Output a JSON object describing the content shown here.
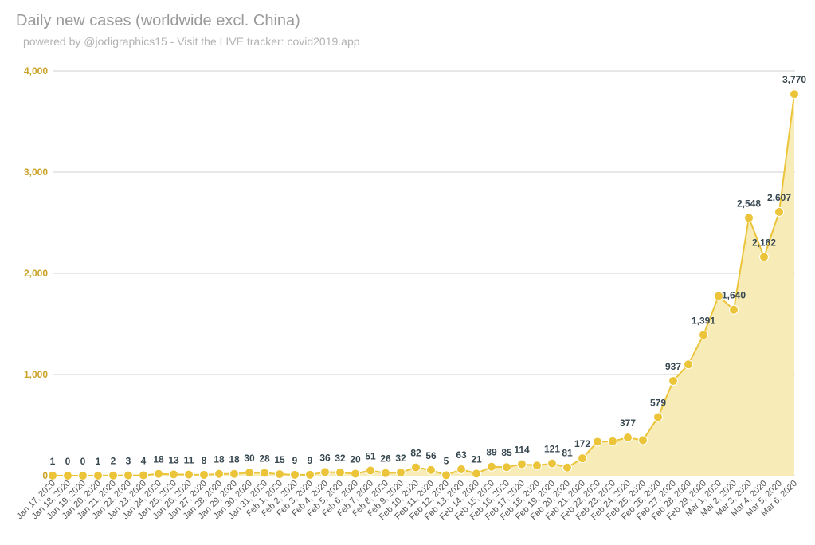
{
  "header": {
    "title": "Daily new cases (worldwide excl. China)",
    "subtitle": "powered by @jodigraphics15 - Visit the LIVE tracker: covid2019.app"
  },
  "colors": {
    "series": "#ebc43a",
    "area": "#f7ebb8",
    "ytick": "#c9a227",
    "grid": "#cfcfcf"
  },
  "chart_data": {
    "type": "area",
    "title": "Daily new cases (worldwide excl. China)",
    "subtitle": "powered by @jodigraphics15 - Visit the LIVE tracker: covid2019.app",
    "xlabel": "",
    "ylabel": "",
    "ylim": [
      0,
      4000
    ],
    "yticks": [
      0,
      1000,
      2000,
      3000,
      4000
    ],
    "ytick_labels": [
      "0",
      "1,000",
      "2,000",
      "3,000",
      "4,000"
    ],
    "grid": true,
    "legend": "none",
    "x": [
      "Jan 17, 2020",
      "Jan 18, 2020",
      "Jan 19, 2020",
      "Jan 20, 2020",
      "Jan 21, 2020",
      "Jan 22, 2020",
      "Jan 23, 2020",
      "Jan 24, 2020",
      "Jan 25, 2020",
      "Jan 26, 2020",
      "Jan 27, 2020",
      "Jan 28, 2020",
      "Jan 29, 2020",
      "Jan 30, 2020",
      "Jan 31, 2020",
      "Feb 1, 2020",
      "Feb 2, 2020",
      "Feb 3, 2020",
      "Feb 4, 2020",
      "Feb 5, 2020",
      "Feb 6, 2020",
      "Feb 7, 2020",
      "Feb 8, 2020",
      "Feb 9, 2020",
      "Feb 10, 2020",
      "Feb 11, 2020",
      "Feb 12, 2020",
      "Feb 13, 2020",
      "Feb 14, 2020",
      "Feb 15, 2020",
      "Feb 16, 2020",
      "Feb 17, 2020",
      "Feb 18, 2020",
      "Feb 19, 2020",
      "Feb 20, 2020",
      "Feb 21, 2020",
      "Feb 22, 2020",
      "Feb 23, 2020",
      "Feb 24, 2020",
      "Feb 25, 2020",
      "Feb 26, 2020",
      "Feb 27, 2020",
      "Feb 28, 2020",
      "Feb 29, 2020",
      "Mar 1, 2020",
      "Mar 2, 2020",
      "Mar 3, 2020",
      "Mar 4, 2020",
      "Mar 5, 2020",
      "Mar 6, 2020"
    ],
    "values": [
      1,
      0,
      0,
      1,
      2,
      3,
      4,
      18,
      13,
      11,
      8,
      18,
      18,
      30,
      28,
      15,
      9,
      9,
      36,
      32,
      20,
      51,
      26,
      32,
      82,
      56,
      5,
      63,
      21,
      89,
      85,
      114,
      100,
      121,
      81,
      172,
      335,
      340,
      377,
      350,
      579,
      937,
      1100,
      1391,
      1775,
      1640,
      2548,
      2162,
      2607,
      3770
    ],
    "data_labels": [
      "1",
      "0",
      "0",
      "1",
      "2",
      "3",
      "4",
      "18",
      "13",
      "11",
      "8",
      "18",
      "18",
      "30",
      "28",
      "15",
      "9",
      "9",
      "36",
      "32",
      "20",
      "51",
      "26",
      "32",
      "82",
      "56",
      "5",
      "63",
      "21",
      "89",
      "85",
      "114",
      "",
      "121",
      "81",
      "172",
      "",
      "",
      "377",
      "",
      "579",
      "937",
      "",
      "1,391",
      "",
      "1,640",
      "2,548",
      "2,162",
      "2,607",
      "3,770"
    ]
  }
}
